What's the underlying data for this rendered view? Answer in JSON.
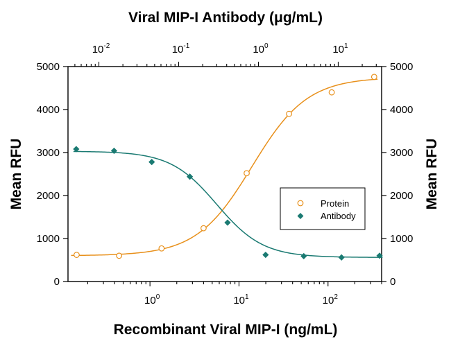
{
  "chart_data": {
    "type": "scatter",
    "top_title": "Viral MIP-I Antibody (μg/mL)",
    "xlabel": "Recombinant Viral MIP-I (ng/mL)",
    "ylabel_left": "Mean RFU",
    "ylabel_right": "Mean RFU",
    "x_scale": "log",
    "xlim": [
      0.12,
      400
    ],
    "ylim": [
      0,
      5000
    ],
    "y_ticks": [
      0,
      1000,
      2000,
      3000,
      4000,
      5000
    ],
    "y_tick_labels": [
      "0",
      "1000",
      "2000",
      "3000",
      "4000",
      "5000"
    ],
    "x_ticks_bottom": [
      {
        "value": 1,
        "base": "10",
        "exp": "0"
      },
      {
        "value": 10,
        "base": "10",
        "exp": "1"
      },
      {
        "value": 100,
        "base": "10",
        "exp": "2"
      }
    ],
    "top_axis_lim": [
      0.0041,
      35
    ],
    "x_ticks_top": [
      {
        "value": 0.01,
        "base": "10",
        "exp": "-2"
      },
      {
        "value": 0.1,
        "base": "10",
        "exp": "-1"
      },
      {
        "value": 1,
        "base": "10",
        "exp": "0"
      },
      {
        "value": 10,
        "base": "10",
        "exp": "1"
      }
    ],
    "grid": false,
    "legend_position": "center-right",
    "series": [
      {
        "name": "Protein",
        "axis": "bottom",
        "color": "#e8901b",
        "marker": "open-circle",
        "points": [
          {
            "x": 0.15,
            "y": 620
          },
          {
            "x": 0.45,
            "y": 600
          },
          {
            "x": 1.35,
            "y": 770
          },
          {
            "x": 4.0,
            "y": 1240
          },
          {
            "x": 12.2,
            "y": 2520
          },
          {
            "x": 36.5,
            "y": 3900
          },
          {
            "x": 110,
            "y": 4400
          },
          {
            "x": 330,
            "y": 4760
          }
        ],
        "fit": {
          "bottom": 600,
          "top": 4750,
          "ec50": 14,
          "hill": 1.4
        }
      },
      {
        "name": "Antibody",
        "axis": "top",
        "color": "#1a7a72",
        "marker": "filled-diamond",
        "points": [
          {
            "x": 0.0052,
            "y": 3080
          },
          {
            "x": 0.0155,
            "y": 3040
          },
          {
            "x": 0.046,
            "y": 2780
          },
          {
            "x": 0.138,
            "y": 2440
          },
          {
            "x": 0.41,
            "y": 1370
          },
          {
            "x": 1.23,
            "y": 620
          },
          {
            "x": 3.7,
            "y": 590
          },
          {
            "x": 11,
            "y": 560
          },
          {
            "x": 33,
            "y": 600
          }
        ],
        "fit": {
          "bottom": 560,
          "top": 3030,
          "ic50": 0.3,
          "hill": 1.5
        }
      }
    ]
  }
}
